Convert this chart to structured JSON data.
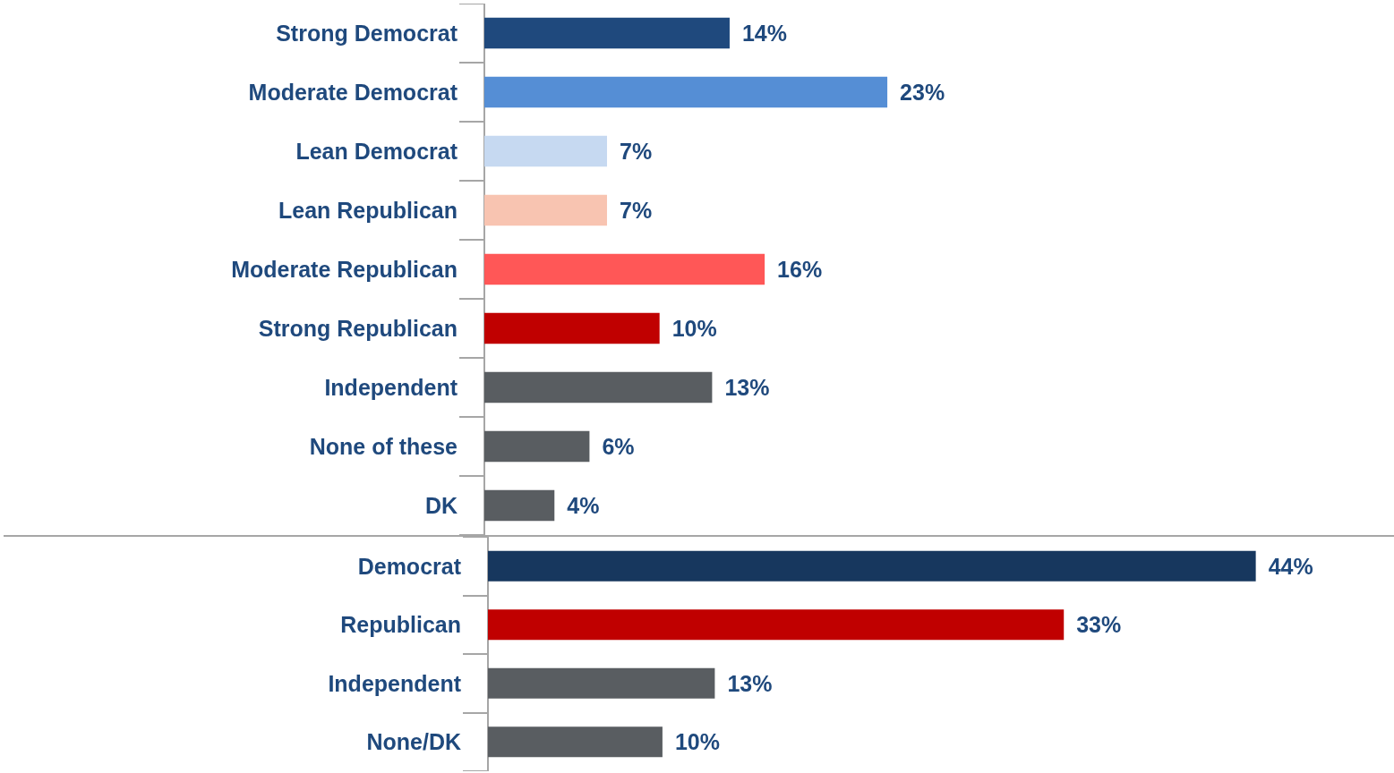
{
  "chart_data": [
    {
      "type": "bar",
      "orientation": "horizontal",
      "categories": [
        "Strong Democrat",
        "Moderate Democrat",
        "Lean Democrat",
        "Lean Republican",
        "Moderate Republican",
        "Strong Republican",
        "Independent",
        "None of these",
        "DK"
      ],
      "values": [
        14,
        23,
        7,
        7,
        16,
        10,
        13,
        6,
        4
      ],
      "colors": [
        "#1f497d",
        "#558ed5",
        "#c6d9f1",
        "#f8c4b1",
        "#ff5757",
        "#c00000",
        "#595d61",
        "#595d61",
        "#595d61"
      ],
      "value_labels": [
        "14%",
        "23%",
        "7%",
        "7%",
        "16%",
        "10%",
        "13%",
        "6%",
        "4%"
      ]
    },
    {
      "type": "bar",
      "orientation": "horizontal",
      "categories": [
        "Democrat",
        "Republican",
        "Independent",
        "None/DK"
      ],
      "values": [
        44,
        33,
        13,
        10
      ],
      "colors": [
        "#17375e",
        "#c00000",
        "#595d61",
        "#595d61"
      ],
      "value_labels": [
        "44%",
        "33%",
        "13%",
        "10%"
      ]
    }
  ]
}
